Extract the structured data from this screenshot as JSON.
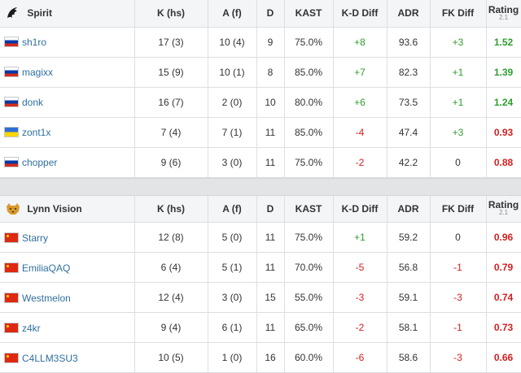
{
  "columns": [
    "K (hs)",
    "A (f)",
    "D",
    "KAST",
    "K-D Diff",
    "ADR",
    "FK Diff",
    "Rating",
    "2.1"
  ],
  "teams": [
    {
      "name": "Spirit",
      "players": [
        {
          "flag": "ru",
          "name": "sh1ro",
          "k": "17 (3)",
          "a": "10 (4)",
          "d": "9",
          "kast": "75.0%",
          "kd": "+8",
          "adr": "93.6",
          "fk": "+3",
          "rating": "1.52"
        },
        {
          "flag": "ru",
          "name": "magixx",
          "k": "15 (9)",
          "a": "10 (1)",
          "d": "8",
          "kast": "85.0%",
          "kd": "+7",
          "adr": "82.3",
          "fk": "+1",
          "rating": "1.39"
        },
        {
          "flag": "ru",
          "name": "donk",
          "k": "16 (7)",
          "a": "2 (0)",
          "d": "10",
          "kast": "80.0%",
          "kd": "+6",
          "adr": "73.5",
          "fk": "+1",
          "rating": "1.24"
        },
        {
          "flag": "ua",
          "name": "zont1x",
          "k": "7 (4)",
          "a": "7 (1)",
          "d": "11",
          "kast": "85.0%",
          "kd": "-4",
          "adr": "47.4",
          "fk": "+3",
          "rating": "0.93"
        },
        {
          "flag": "ru",
          "name": "chopper",
          "k": "9 (6)",
          "a": "3 (0)",
          "d": "11",
          "kast": "75.0%",
          "kd": "-2",
          "adr": "42.2",
          "fk": "0",
          "rating": "0.88"
        }
      ]
    },
    {
      "name": "Lynn Vision",
      "players": [
        {
          "flag": "cn",
          "name": "Starry",
          "k": "12 (8)",
          "a": "5 (0)",
          "d": "11",
          "kast": "75.0%",
          "kd": "+1",
          "adr": "59.2",
          "fk": "0",
          "rating": "0.96"
        },
        {
          "flag": "cn",
          "name": "EmiliaQAQ",
          "k": "6 (4)",
          "a": "5 (1)",
          "d": "11",
          "kast": "70.0%",
          "kd": "-5",
          "adr": "56.8",
          "fk": "-1",
          "rating": "0.79"
        },
        {
          "flag": "cn",
          "name": "Westmelon",
          "k": "12 (4)",
          "a": "3 (0)",
          "d": "15",
          "kast": "55.0%",
          "kd": "-3",
          "adr": "59.1",
          "fk": "-3",
          "rating": "0.74"
        },
        {
          "flag": "cn",
          "name": "z4kr",
          "k": "9 (4)",
          "a": "6 (1)",
          "d": "11",
          "kast": "65.0%",
          "kd": "-2",
          "adr": "58.1",
          "fk": "-1",
          "rating": "0.73"
        },
        {
          "flag": "cn",
          "name": "C4LLM3SU3",
          "k": "10 (5)",
          "a": "1 (0)",
          "d": "16",
          "kast": "60.0%",
          "kd": "-6",
          "adr": "58.6",
          "fk": "-3",
          "rating": "0.66"
        }
      ]
    }
  ],
  "colors": {
    "positive": "#2e9e2e",
    "negative": "#d31f1f",
    "link": "#2f6f9f",
    "header_bg": "#f3f5f7",
    "gap_bg": "#e2e4e6"
  },
  "icons": {
    "team0": "spirit-logo-icon",
    "team1": "lynn-vision-logo-icon"
  }
}
